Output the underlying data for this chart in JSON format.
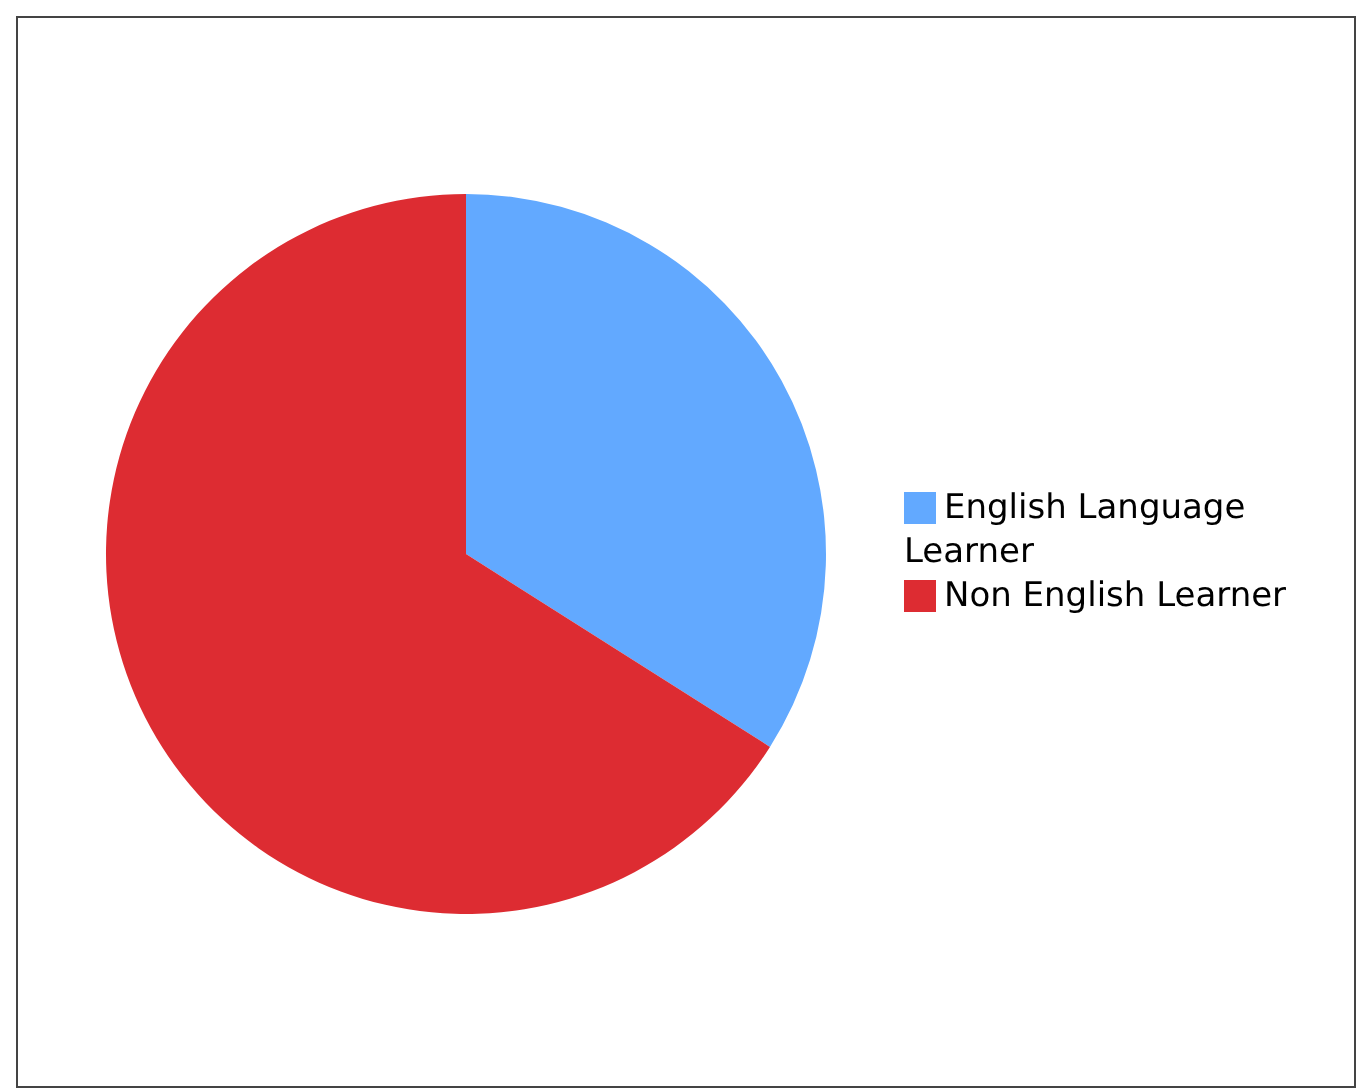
{
  "chart_data": {
    "type": "pie",
    "categories": [
      "English Language Learner",
      "Non English Learner"
    ],
    "values": [
      34,
      66
    ],
    "colors": [
      "#62a9ff",
      "#dd2c32"
    ],
    "legend": "right"
  }
}
